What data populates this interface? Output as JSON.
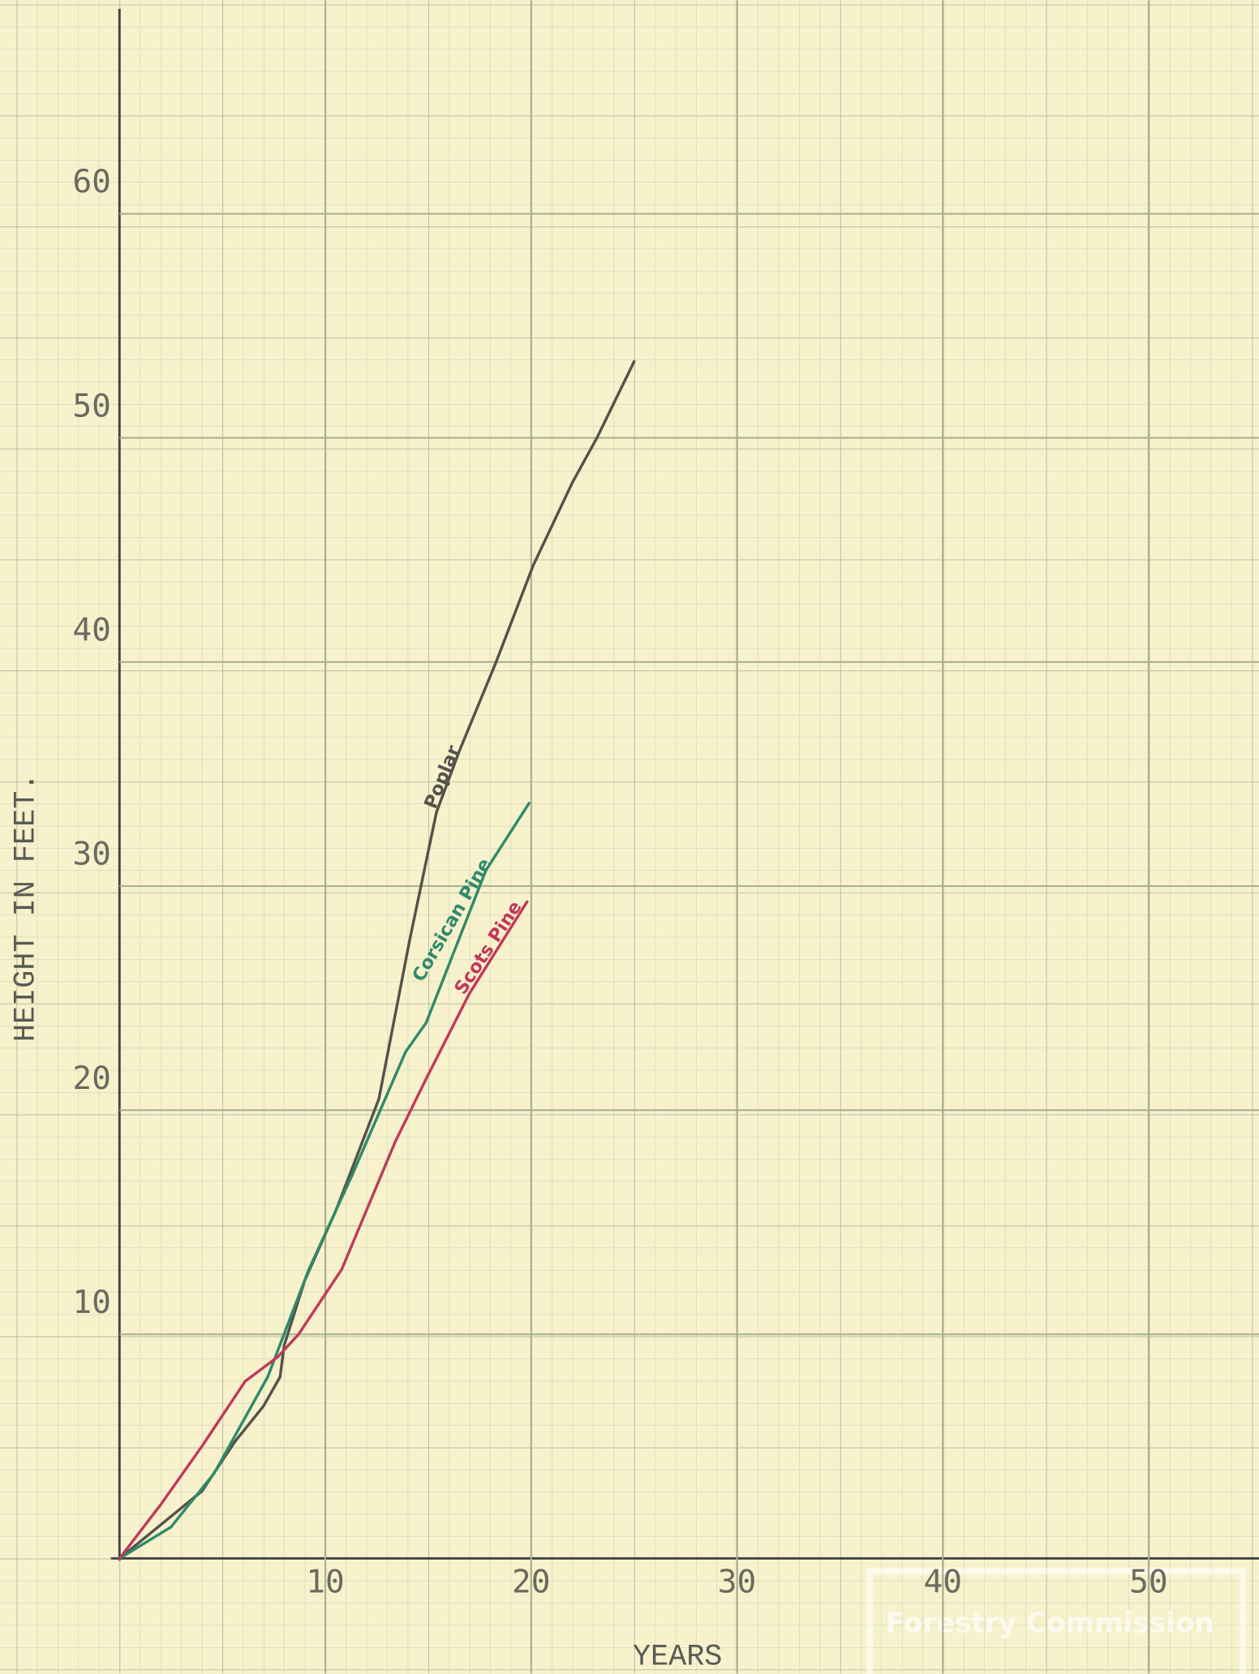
{
  "chart_data": {
    "type": "line",
    "x_label": "YEARS",
    "y_label": "HEIGHT IN FEET.",
    "xlim": [
      0,
      55
    ],
    "ylim": [
      0,
      69
    ],
    "xticks": [
      10,
      20,
      30,
      40,
      50
    ],
    "yticks": [
      10,
      20,
      30,
      40,
      50,
      60
    ],
    "grid": true,
    "watermark": "Forestry Commission",
    "series": [
      {
        "name": "Poplar",
        "color": "#55524a",
        "x": [
          0,
          2,
          4,
          5.6,
          7,
          7.8,
          8,
          9,
          10.5,
          12.6,
          14.1,
          15.4,
          16.5,
          18.3,
          20.1,
          22,
          23.2,
          25
        ],
        "values": [
          0,
          1.5,
          3,
          5.2,
          6.8,
          8.1,
          9.5,
          12.4,
          15.5,
          20.5,
          27.6,
          33.3,
          36,
          40,
          44.3,
          48,
          50,
          53.4
        ]
      },
      {
        "name": "Corsican Pine",
        "color": "#2f8a6a",
        "x": [
          0,
          2.5,
          4.6,
          7.2,
          9.2,
          11.3,
          13.9,
          14.9,
          17.8,
          19.9
        ],
        "values": [
          0,
          1.4,
          3.8,
          8.1,
          12.9,
          17.1,
          22.6,
          23.9,
          30.7,
          33.7
        ]
      },
      {
        "name": "Scots Pine",
        "color": "#c0395a",
        "x": [
          0,
          2,
          4,
          6.1,
          7.7,
          8.7,
          10.8,
          13.4,
          14.9,
          17,
          19.8
        ],
        "values": [
          0,
          2.4,
          5,
          7.9,
          9,
          10,
          12.9,
          18.6,
          21.4,
          25.2,
          29.3
        ]
      }
    ]
  }
}
